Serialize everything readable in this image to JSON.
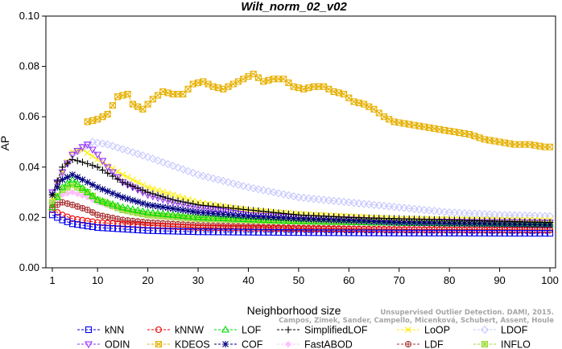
{
  "chart_data": {
    "type": "line",
    "title": "Wilt_norm_02_v02",
    "xlabel": "Neighborhood size",
    "ylabel": "AP",
    "xlim": [
      1,
      100
    ],
    "ylim": [
      0.0,
      0.1
    ],
    "xticks": [
      1,
      10,
      20,
      30,
      40,
      50,
      60,
      70,
      80,
      90,
      100
    ],
    "yticks": [
      0.0,
      0.02,
      0.04,
      0.06,
      0.08,
      0.1
    ],
    "ytick_labels": [
      "0.00",
      "0.02",
      "0.04",
      "0.06",
      "0.08",
      "0.10"
    ],
    "grid": false,
    "legend_position": "bottom",
    "series": [
      {
        "name": "kNN",
        "color": "#0000ee",
        "marker": "square",
        "line": "dashed",
        "points": [
          [
            1,
            0.021
          ],
          [
            3,
            0.019
          ],
          [
            5,
            0.0175
          ],
          [
            10,
            0.016
          ],
          [
            20,
            0.0148
          ],
          [
            30,
            0.0143
          ],
          [
            50,
            0.014
          ],
          [
            70,
            0.0138
          ],
          [
            100,
            0.0137
          ]
        ]
      },
      {
        "name": "kNNW",
        "color": "#ee0000",
        "marker": "circle",
        "line": "dashed",
        "points": [
          [
            1,
            0.023
          ],
          [
            3,
            0.021
          ],
          [
            5,
            0.0195
          ],
          [
            10,
            0.018
          ],
          [
            20,
            0.0168
          ],
          [
            30,
            0.016
          ],
          [
            50,
            0.0155
          ],
          [
            70,
            0.0152
          ],
          [
            100,
            0.015
          ]
        ]
      },
      {
        "name": "LOF",
        "color": "#00dd00",
        "marker": "triangle",
        "line": "dashed",
        "points": [
          [
            1,
            0.024
          ],
          [
            3,
            0.032
          ],
          [
            5,
            0.035
          ],
          [
            8,
            0.03
          ],
          [
            10,
            0.027
          ],
          [
            15,
            0.024
          ],
          [
            20,
            0.022
          ],
          [
            30,
            0.02
          ],
          [
            50,
            0.0185
          ],
          [
            70,
            0.0178
          ],
          [
            100,
            0.0173
          ]
        ]
      },
      {
        "name": "SimplifiedLOF",
        "color": "#000000",
        "marker": "plus",
        "line": "dashed",
        "points": [
          [
            1,
            0.029
          ],
          [
            3,
            0.04
          ],
          [
            5,
            0.043
          ],
          [
            7,
            0.042
          ],
          [
            10,
            0.04
          ],
          [
            15,
            0.034
          ],
          [
            20,
            0.03
          ],
          [
            25,
            0.027
          ],
          [
            30,
            0.025
          ],
          [
            40,
            0.023
          ],
          [
            50,
            0.021
          ],
          [
            60,
            0.02
          ],
          [
            70,
            0.0195
          ],
          [
            80,
            0.019
          ],
          [
            90,
            0.0185
          ],
          [
            100,
            0.018
          ]
        ]
      },
      {
        "name": "LoOP",
        "color": "#ffee00",
        "marker": "x",
        "line": "dashed",
        "points": [
          [
            1,
            0.028
          ],
          [
            3,
            0.038
          ],
          [
            5,
            0.046
          ],
          [
            7,
            0.047
          ],
          [
            10,
            0.043
          ],
          [
            15,
            0.037
          ],
          [
            20,
            0.032
          ],
          [
            30,
            0.026
          ],
          [
            40,
            0.023
          ],
          [
            50,
            0.0215
          ],
          [
            70,
            0.0195
          ],
          [
            100,
            0.019
          ]
        ]
      },
      {
        "name": "LDOF",
        "color": "#c8c8ff",
        "marker": "diamond",
        "line": "dashed",
        "points": [
          [
            1,
            0.03
          ],
          [
            5,
            0.045
          ],
          [
            9,
            0.05
          ],
          [
            12,
            0.049
          ],
          [
            20,
            0.044
          ],
          [
            30,
            0.037
          ],
          [
            40,
            0.032
          ],
          [
            50,
            0.028
          ],
          [
            60,
            0.026
          ],
          [
            70,
            0.024
          ],
          [
            80,
            0.022
          ],
          [
            90,
            0.021
          ],
          [
            100,
            0.0205
          ]
        ]
      },
      {
        "name": "ODIN",
        "color": "#9933ff",
        "marker": "triangle-down",
        "line": "dashed",
        "points": [
          [
            1,
            0.03
          ],
          [
            3,
            0.038
          ],
          [
            5,
            0.045
          ],
          [
            7,
            0.048
          ],
          [
            8,
            0.049
          ],
          [
            10,
            0.045
          ],
          [
            12,
            0.04
          ],
          [
            15,
            0.034
          ],
          [
            20,
            0.029
          ],
          [
            25,
            0.026
          ],
          [
            30,
            0.024
          ],
          [
            40,
            0.021
          ],
          [
            50,
            0.02
          ],
          [
            70,
            0.0185
          ],
          [
            100,
            0.018
          ]
        ]
      },
      {
        "name": "KDEOS",
        "color": "#e6b000",
        "marker": "boxed-x",
        "line": "dashed",
        "points": [
          [
            8,
            0.058
          ],
          [
            10,
            0.059
          ],
          [
            12,
            0.061
          ],
          [
            14,
            0.068
          ],
          [
            16,
            0.069
          ],
          [
            17,
            0.065
          ],
          [
            19,
            0.063
          ],
          [
            21,
            0.067
          ],
          [
            23,
            0.07
          ],
          [
            25,
            0.069
          ],
          [
            27,
            0.069
          ],
          [
            29,
            0.073
          ],
          [
            31,
            0.074
          ],
          [
            33,
            0.072
          ],
          [
            35,
            0.071
          ],
          [
            37,
            0.073
          ],
          [
            39,
            0.075
          ],
          [
            41,
            0.077
          ],
          [
            43,
            0.074
          ],
          [
            45,
            0.075
          ],
          [
            47,
            0.075
          ],
          [
            49,
            0.072
          ],
          [
            51,
            0.071
          ],
          [
            53,
            0.072
          ],
          [
            55,
            0.072
          ],
          [
            57,
            0.07
          ],
          [
            59,
            0.069
          ],
          [
            61,
            0.066
          ],
          [
            63,
            0.065
          ],
          [
            65,
            0.063
          ],
          [
            67,
            0.06
          ],
          [
            69,
            0.058
          ],
          [
            72,
            0.057
          ],
          [
            75,
            0.056
          ],
          [
            78,
            0.055
          ],
          [
            81,
            0.054
          ],
          [
            84,
            0.053
          ],
          [
            87,
            0.051
          ],
          [
            90,
            0.05
          ],
          [
            93,
            0.049
          ],
          [
            96,
            0.049
          ],
          [
            99,
            0.048
          ],
          [
            100,
            0.048
          ]
        ]
      },
      {
        "name": "COF",
        "color": "#000080",
        "marker": "asterisk",
        "line": "dashed",
        "points": [
          [
            1,
            0.029
          ],
          [
            3,
            0.035
          ],
          [
            5,
            0.037
          ],
          [
            7,
            0.035
          ],
          [
            10,
            0.032
          ],
          [
            15,
            0.028
          ],
          [
            20,
            0.025
          ],
          [
            30,
            0.022
          ],
          [
            40,
            0.0205
          ],
          [
            50,
            0.0195
          ],
          [
            70,
            0.018
          ],
          [
            100,
            0.017
          ]
        ]
      },
      {
        "name": "FastABOD",
        "color": "#ffc0ff",
        "marker": "diamond-filled",
        "line": "dashed",
        "points": [
          [
            1,
            0.026
          ],
          [
            3,
            0.029
          ],
          [
            5,
            0.03
          ],
          [
            8,
            0.028
          ],
          [
            10,
            0.026
          ],
          [
            15,
            0.023
          ],
          [
            20,
            0.021
          ],
          [
            30,
            0.019
          ],
          [
            50,
            0.0178
          ],
          [
            70,
            0.017
          ],
          [
            100,
            0.0165
          ]
        ]
      },
      {
        "name": "LDF",
        "color": "#aa3333",
        "marker": "circle-plus",
        "line": "dashed",
        "points": [
          [
            1,
            0.024
          ],
          [
            3,
            0.026
          ],
          [
            5,
            0.025
          ],
          [
            8,
            0.023
          ],
          [
            10,
            0.021
          ],
          [
            15,
            0.019
          ],
          [
            20,
            0.018
          ],
          [
            30,
            0.0168
          ],
          [
            50,
            0.0158
          ],
          [
            70,
            0.0152
          ],
          [
            100,
            0.015
          ]
        ]
      },
      {
        "name": "INFLO",
        "color": "#99dd33",
        "marker": "boxed-star",
        "line": "dashed",
        "points": [
          [
            1,
            0.026
          ],
          [
            3,
            0.031
          ],
          [
            5,
            0.033
          ],
          [
            8,
            0.03
          ],
          [
            10,
            0.027
          ],
          [
            15,
            0.023
          ],
          [
            20,
            0.021
          ],
          [
            30,
            0.0195
          ],
          [
            50,
            0.0185
          ],
          [
            70,
            0.018
          ],
          [
            100,
            0.0175
          ]
        ]
      }
    ]
  },
  "legend_order": [
    "kNN",
    "kNNW",
    "LOF",
    "SimplifiedLOF",
    "LoOP",
    "LDOF",
    "ODIN",
    "KDEOS",
    "COF",
    "FastABOD",
    "LDF",
    "INFLO"
  ],
  "credit": {
    "line1": "Unsupervised Outlier Detection. DAMI, 2015.",
    "line2": "Campos, Zimek, Sander, Campello, Micenková, Schubert, Assent, Houle"
  }
}
